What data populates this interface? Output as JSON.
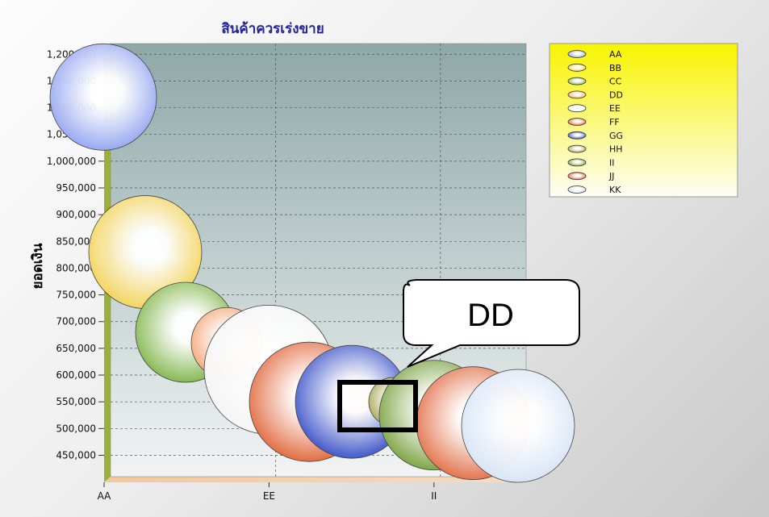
{
  "chart_data": {
    "type": "scatter",
    "title": "สินค้าควรเร่งขาย",
    "ylabel": "ยอดเงิน",
    "xlabel": "",
    "categories": [
      "AA",
      "BB",
      "CC",
      "DD",
      "EE",
      "FF",
      "GG",
      "HH",
      "II",
      "JJ",
      "KK"
    ],
    "x_tick_labels": [
      "AA",
      "EE",
      "II"
    ],
    "y_ticks": [
      450000,
      500000,
      550000,
      600000,
      650000,
      700000,
      750000,
      800000,
      850000,
      900000,
      950000,
      1000000,
      1050000,
      1100000,
      1150000,
      1200000
    ],
    "y_tick_labels": [
      "450,000",
      "500,000",
      "550,000",
      "600,000",
      "650,000",
      "700,000",
      "750,000",
      "800,000",
      "850,000",
      "900,000",
      "950,000",
      "1,000,000",
      "1,050,000",
      "1,100,000",
      "1,150,000",
      "1,200,000"
    ],
    "ylim": [
      410000,
      1220000
    ],
    "grid": true,
    "legend_position": "top-right",
    "series": [
      {
        "name": "AA",
        "x": "AA",
        "y": 1120000,
        "color": "#8b9ef0"
      },
      {
        "name": "BB",
        "x": "BB",
        "y": 830000,
        "color": "#f2cf4a"
      },
      {
        "name": "CC",
        "x": "CC",
        "y": 680000,
        "color": "#77b03c"
      },
      {
        "name": "DD",
        "x": "DD",
        "y": 660000,
        "color": "#f5a06f"
      },
      {
        "name": "EE",
        "x": "EE",
        "y": 610000,
        "color": "#f4f4f4"
      },
      {
        "name": "FF",
        "x": "FF",
        "y": 550000,
        "color": "#df5a2c"
      },
      {
        "name": "GG",
        "x": "GG",
        "y": 550000,
        "color": "#2a44c4"
      },
      {
        "name": "HH",
        "x": "HH",
        "y": 550000,
        "color": "#a3a04a"
      },
      {
        "name": "II",
        "x": "II",
        "y": 525000,
        "color": "#6f9a30"
      },
      {
        "name": "JJ",
        "x": "JJ",
        "y": 510000,
        "color": "#e06238"
      },
      {
        "name": "KK",
        "x": "KK",
        "y": 505000,
        "color": "#d4e2f6"
      }
    ],
    "annotation": {
      "text": "DD",
      "highlight_category": "HH"
    }
  }
}
